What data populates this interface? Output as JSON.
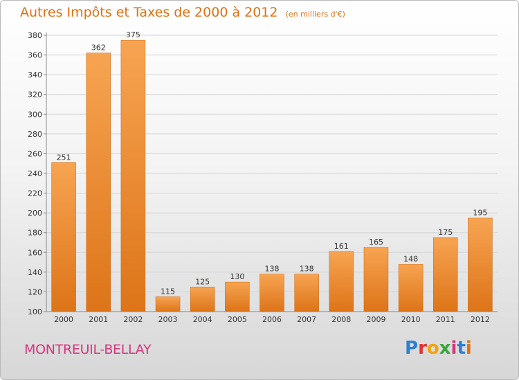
{
  "header": {
    "title": "Autres Impôts et Taxes de 2000 à 2012",
    "subtitle": "(en milliers d'€)"
  },
  "footer": {
    "city": "MONTREUIL-BELLAY",
    "brand": "Proxiti"
  },
  "colors": {
    "title": "#e0700e",
    "city": "#d6367e",
    "bar_top": "#f7a452",
    "bar_bottom": "#dd7418"
  },
  "chart_data": {
    "type": "bar",
    "title": "Autres Impôts et Taxes de 2000 à 2012",
    "subtitle": "(en milliers d'€)",
    "categories": [
      "2000",
      "2001",
      "2002",
      "2003",
      "2004",
      "2005",
      "2006",
      "2007",
      "2008",
      "2009",
      "2010",
      "2011",
      "2012"
    ],
    "values": [
      251,
      362,
      375,
      115,
      125,
      130,
      138,
      138,
      161,
      165,
      148,
      175,
      195
    ],
    "ylim": [
      100,
      380
    ],
    "yticks": [
      100,
      120,
      140,
      160,
      180,
      200,
      220,
      240,
      260,
      280,
      300,
      320,
      340,
      360,
      380
    ],
    "grid": true,
    "data_labels": true
  }
}
